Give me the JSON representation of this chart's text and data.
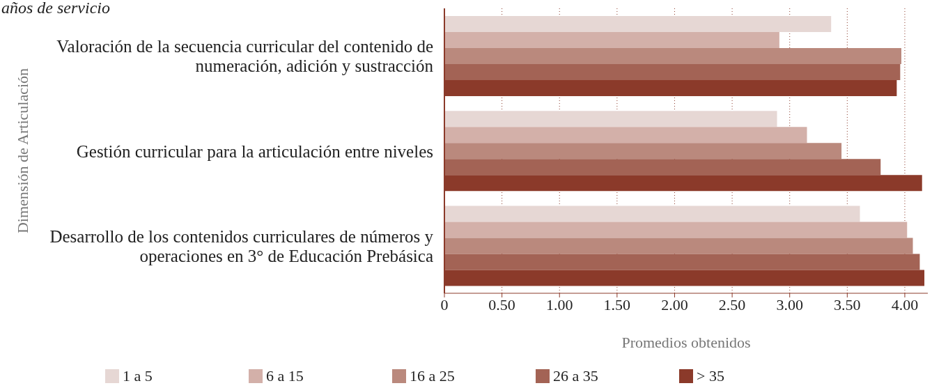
{
  "chart_data": {
    "type": "bar",
    "orientation": "horizontal",
    "title": "años de servicio",
    "xlabel": "Promedios obtenidos",
    "ylabel": "Dimensión de Articulación",
    "categories": [
      "Valoración de la secuencia curricular del contenido de numeración, adición y sustracción",
      "Gestión curricular para la articulación entre niveles",
      "Desarrollo de los contenidos curriculares de números y operaciones en 3° de Educación Prebásica"
    ],
    "series": [
      {
        "name": "1 a 5",
        "color": "#e6d7d4",
        "values": [
          3.36,
          2.89,
          3.61
        ]
      },
      {
        "name": "6 a 15",
        "color": "#d3b0a9",
        "values": [
          2.91,
          3.15,
          4.02
        ]
      },
      {
        "name": "16 a 25",
        "color": "#ba897d",
        "values": [
          3.97,
          3.45,
          4.07
        ]
      },
      {
        "name": "26 a 35",
        "color": "#a36355",
        "values": [
          3.96,
          3.79,
          4.13
        ]
      },
      {
        "name": "> 35",
        "color": "#8b3a2a",
        "values": [
          3.93,
          4.15,
          4.17
        ]
      }
    ],
    "xlim": [
      0,
      4.2
    ],
    "xticks": [
      0,
      {
        "value": 0.5,
        "label": "0.50"
      },
      {
        "value": 1,
        "label": "1.00"
      },
      {
        "value": 1.5,
        "label": "1.50"
      },
      {
        "value": 2,
        "label": "2.00"
      },
      {
        "value": 2.5,
        "label": "2.50"
      },
      {
        "value": 3,
        "label": "3.00"
      },
      {
        "value": 3.5,
        "label": "3.50"
      },
      {
        "value": 4,
        "label": "4.00"
      }
    ],
    "grid": "x",
    "legend": "bottom"
  }
}
